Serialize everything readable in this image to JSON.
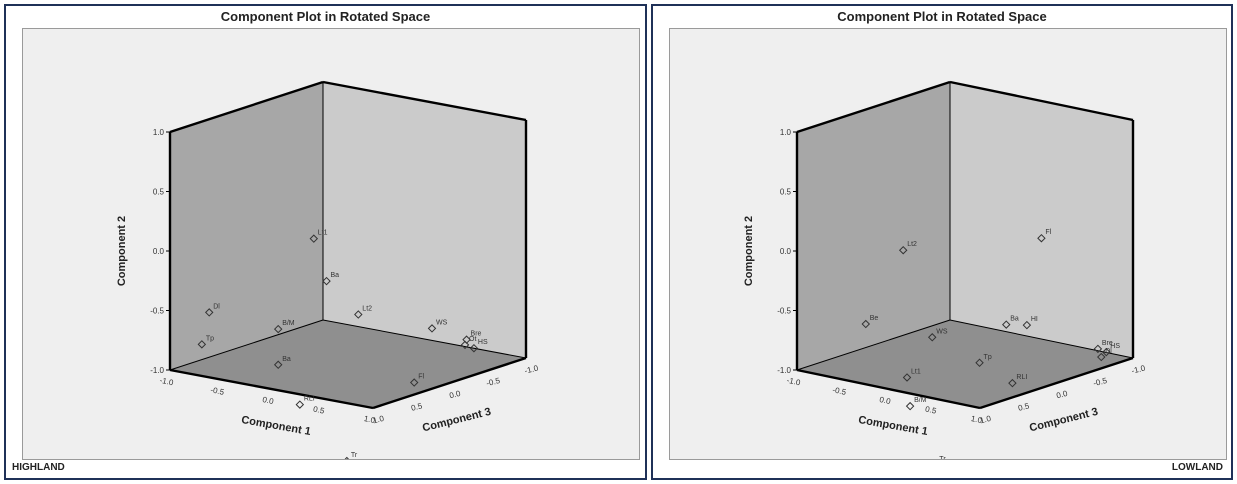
{
  "chart_data": [
    {
      "type": "scatter",
      "projection": "3d",
      "title": "Component Plot in Rotated Space",
      "caption": "HIGHLAND",
      "xlabel": "Component 1",
      "ylabel": "Component 2",
      "zlabel": "Component 3",
      "xlim": [
        -1.0,
        1.0
      ],
      "ylim": [
        -1.0,
        1.0
      ],
      "zlim": [
        -1.0,
        1.0
      ],
      "x_ticks": [
        "-1.0",
        "-0.5",
        "0.0",
        "0.5",
        "1.0"
      ],
      "y_ticks": [
        "1.0",
        "0.5",
        "0.0",
        "-0.5",
        "-1.0"
      ],
      "z_ticks": [
        "1.0",
        "0.5",
        "0.0",
        "-0.5",
        "-1.0"
      ],
      "points": [
        {
          "label": "Lt1",
          "x": 0.15,
          "y": 0.95,
          "z": 0.45
        },
        {
          "label": "Ba",
          "x": 0.25,
          "y": 0.58,
          "z": 0.4
        },
        {
          "label": "Dl",
          "x": -0.62,
          "y": 0.42,
          "z": 0.9
        },
        {
          "label": "B/M",
          "x": -0.05,
          "y": 0.2,
          "z": 0.65
        },
        {
          "label": "Lt2",
          "x": 0.4,
          "y": 0.3,
          "z": 0.2
        },
        {
          "label": "Tp",
          "x": -0.65,
          "y": 0.15,
          "z": 0.95
        },
        {
          "label": "WS",
          "x": 0.7,
          "y": 0.2,
          "z": -0.3
        },
        {
          "label": "Bre",
          "x": 0.82,
          "y": 0.12,
          "z": -0.55
        },
        {
          "label": "Ot",
          "x": 0.8,
          "y": 0.08,
          "z": -0.55
        },
        {
          "label": "HS",
          "x": 0.85,
          "y": 0.05,
          "z": -0.6
        },
        {
          "label": "Ba",
          "x": -0.05,
          "y": -0.1,
          "z": 0.65
        },
        {
          "label": "Fl",
          "x": 0.6,
          "y": -0.25,
          "z": -0.2
        },
        {
          "label": "RLI",
          "x": 0.1,
          "y": -0.45,
          "z": 0.55
        },
        {
          "label": "Tr",
          "x": 0.25,
          "y": -0.9,
          "z": 0.2
        }
      ]
    },
    {
      "type": "scatter",
      "projection": "3d",
      "title": "Component Plot in Rotated Space",
      "caption": "LOWLAND",
      "xlabel": "Component 1",
      "ylabel": "Component 2",
      "zlabel": "Component 3",
      "xlim": [
        -1.0,
        1.0
      ],
      "ylim": [
        -1.0,
        1.0
      ],
      "zlim": [
        -1.0,
        1.0
      ],
      "x_ticks": [
        "-1.0",
        "-0.5",
        "0.0",
        "0.5",
        "1.0"
      ],
      "y_ticks": [
        "1.0",
        "0.5",
        "0.0",
        "-0.5",
        "-1.0"
      ],
      "z_ticks": [
        "1.0",
        "0.5",
        "0.0",
        "-0.5",
        "-1.0"
      ],
      "points": [
        {
          "label": "Fl",
          "x": 0.7,
          "y": 0.95,
          "z": -0.25
        },
        {
          "label": "Lt2",
          "x": -0.15,
          "y": 0.9,
          "z": 0.55
        },
        {
          "label": "Be",
          "x": -0.4,
          "y": 0.3,
          "z": 0.75
        },
        {
          "label": "Ba",
          "x": 0.3,
          "y": 0.3,
          "z": -0.2
        },
        {
          "label": "HI",
          "x": 0.45,
          "y": 0.28,
          "z": -0.3
        },
        {
          "label": "WS",
          "x": 0.05,
          "y": 0.15,
          "z": 0.4
        },
        {
          "label": "Bre",
          "x": 0.9,
          "y": 0.05,
          "z": -0.7
        },
        {
          "label": "HS",
          "x": 0.95,
          "y": 0.02,
          "z": -0.75
        },
        {
          "label": "Dl",
          "x": 0.92,
          "y": -0.02,
          "z": -0.72
        },
        {
          "label": "Tp",
          "x": 0.25,
          "y": -0.05,
          "z": 0.05
        },
        {
          "label": "Lt1",
          "x": -0.1,
          "y": -0.18,
          "z": 0.55
        },
        {
          "label": "RLI",
          "x": 0.5,
          "y": -0.25,
          "z": -0.1
        },
        {
          "label": "B/M",
          "x": 0.0,
          "y": -0.45,
          "z": 0.6
        },
        {
          "label": "Tr",
          "x": 0.15,
          "y": -0.95,
          "z": 0.45
        }
      ]
    }
  ]
}
